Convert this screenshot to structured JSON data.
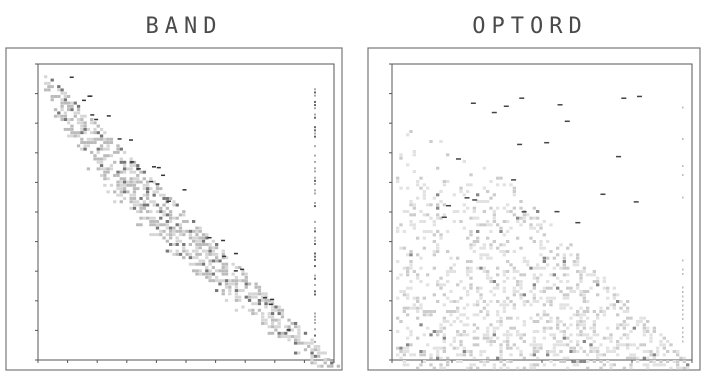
{
  "figure": {
    "panels": [
      {
        "title": "BAND"
      },
      {
        "title": "OPTORD"
      }
    ]
  }
}
